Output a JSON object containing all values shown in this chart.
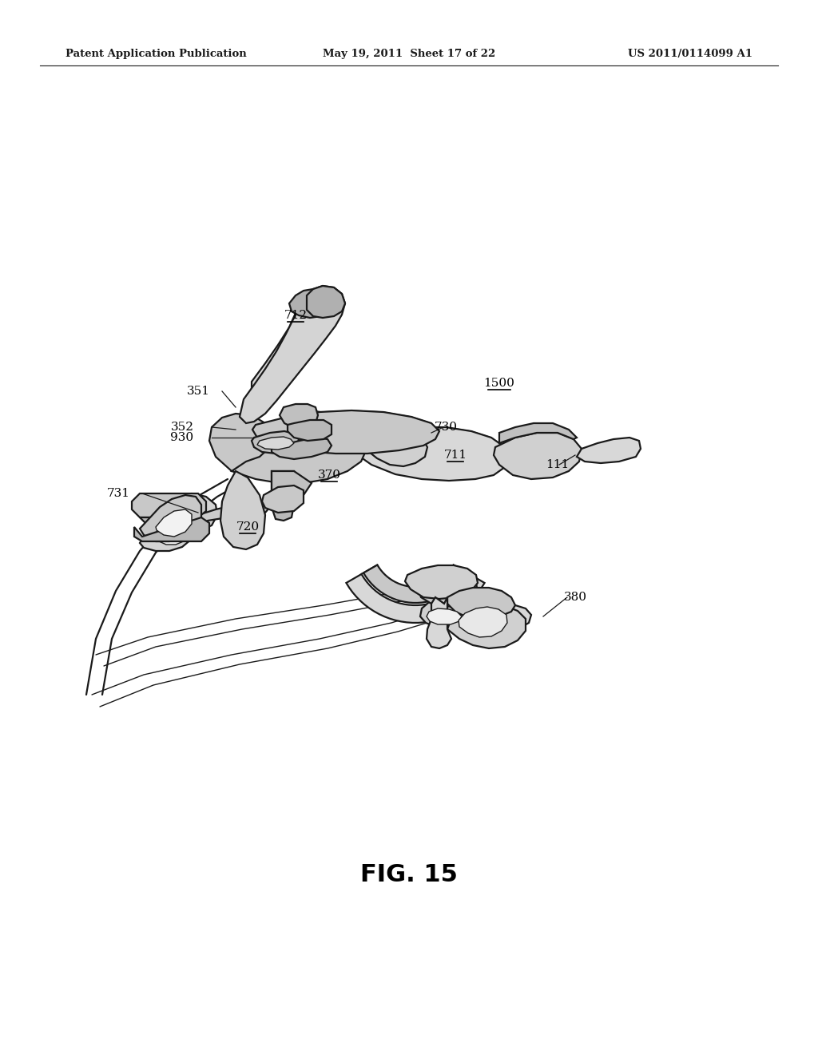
{
  "header_left": "Patent Application Publication",
  "header_center": "May 19, 2011  Sheet 17 of 22",
  "header_right": "US 2011/0114099 A1",
  "figure_label": "FIG. 15",
  "bg_color": "#ffffff",
  "line_color": "#000000",
  "gray_fill": "#d8d8d8",
  "light_gray": "#e8e8e8",
  "mid_gray": "#c0c0c0"
}
